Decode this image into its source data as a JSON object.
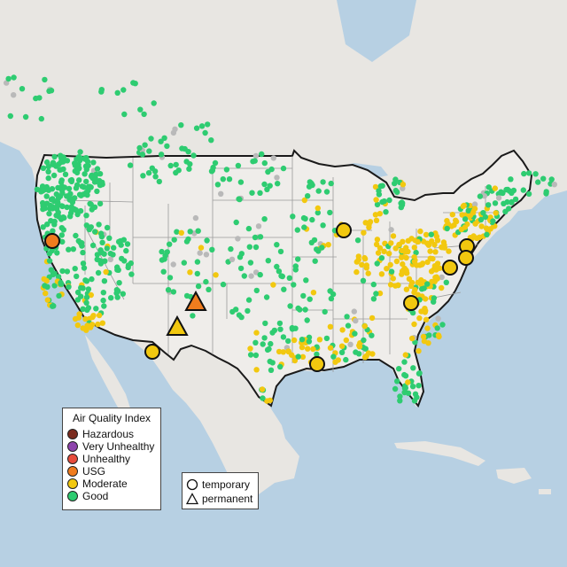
{
  "colors": {
    "ocean": "#b7d0e3",
    "land_us": "#efedea",
    "land_other": "#e8e6e2",
    "state_line": "#9a9a9a",
    "border": "#1a1a1a",
    "good": "#2ecc71",
    "moderate": "#f2c80f",
    "usg": "#f07c1e",
    "unhealthy": "#e74c3c",
    "very_unhealthy": "#8e44ad",
    "hazardous": "#7b2c1f",
    "no_data": "#b9b9b9"
  },
  "legend": {
    "title": "Air Quality Index",
    "items": [
      {
        "label": "Hazardous",
        "color": "#7b2c1f"
      },
      {
        "label": "Very Unhealthy",
        "color": "#8e44ad"
      },
      {
        "label": "Unhealthy",
        "color": "#e74c3c"
      },
      {
        "label": "USG",
        "color": "#f07c1e"
      },
      {
        "label": "Moderate",
        "color": "#f2c80f"
      },
      {
        "label": "Good",
        "color": "#2ecc71"
      }
    ]
  },
  "shape_legend": {
    "items": [
      {
        "label": "temporary",
        "shape": "circle"
      },
      {
        "label": "permanent",
        "shape": "triangle"
      }
    ]
  },
  "monitors": [
    {
      "category": "usg",
      "type": "temporary",
      "location": "northern california"
    },
    {
      "category": "usg",
      "type": "permanent",
      "location": "northern new mexico"
    },
    {
      "category": "moderate",
      "type": "permanent",
      "location": "southern new mexico"
    },
    {
      "category": "moderate",
      "type": "temporary",
      "location": "southern arizona"
    },
    {
      "category": "moderate",
      "type": "temporary",
      "location": "northern illinois"
    },
    {
      "category": "moderate",
      "type": "temporary",
      "location": "louisiana"
    },
    {
      "category": "moderate",
      "type": "temporary",
      "location": "north carolina"
    },
    {
      "category": "moderate",
      "type": "temporary",
      "location": "virginia"
    },
    {
      "category": "moderate",
      "type": "temporary",
      "location": "maryland"
    },
    {
      "category": "moderate",
      "type": "temporary",
      "location": "new jersey"
    }
  ]
}
